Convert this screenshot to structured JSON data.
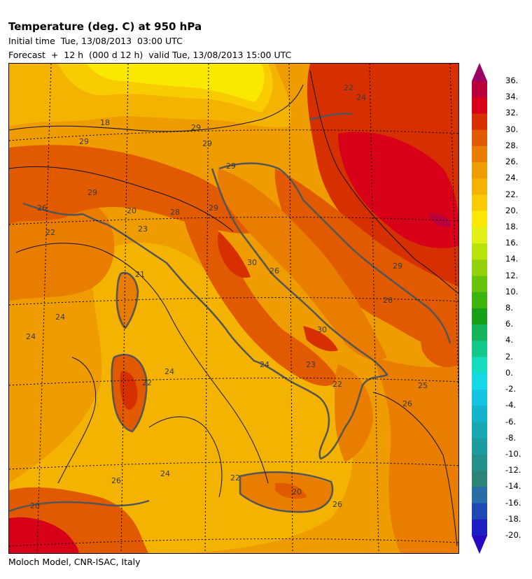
{
  "header": {
    "title": "Temperature (deg. C) at 950 hPa",
    "initial_time": "Initial time  Tue, 13/08/2013  03:00 UTC",
    "forecast": "Forecast  +  12 h  (000 d 12 h)  valid Tue, 13/08/2013 15:00 UTC"
  },
  "footer": {
    "credit": "Moloch Model, CNR-ISAC, Italy"
  },
  "colorbar": {
    "ticks": [
      "36.",
      "34.",
      "32.",
      "30.",
      "28.",
      "26.",
      "24.",
      "22.",
      "20.",
      "18.",
      "16.",
      "14.",
      "12.",
      "10.",
      "8.",
      "6.",
      "4.",
      "2.",
      "0.",
      "-2.",
      "-4.",
      "-6.",
      "-8.",
      "-10.",
      "-12.",
      "-14.",
      "-16.",
      "-18.",
      "-20."
    ],
    "colors": [
      "#9b0066",
      "#b9003c",
      "#d80018",
      "#d73000",
      "#e15a00",
      "#e87d00",
      "#ee9c00",
      "#f3b300",
      "#f8cc00",
      "#fae800",
      "#e2f01a",
      "#b8e20a",
      "#92d20a",
      "#6ac40a",
      "#3eb40e",
      "#16a01a",
      "#14b45a",
      "#14c88c",
      "#14dcc0",
      "#14d8e8",
      "#14c4e0",
      "#14b4cc",
      "#18a8b0",
      "#1c9ca0",
      "#24908c",
      "#2c8478",
      "#286ca8",
      "#2048b4",
      "#1c20c0",
      "#2808c0"
    ]
  },
  "map": {
    "contour_labels": [
      "22",
      "24",
      "29",
      "18",
      "29",
      "20",
      "28",
      "29",
      "26",
      "22",
      "23",
      "21",
      "24",
      "24",
      "30",
      "26",
      "30",
      "24",
      "22",
      "23",
      "24",
      "25",
      "26",
      "22",
      "26",
      "24",
      "22",
      "26",
      "20",
      "26",
      "29",
      "20",
      "29",
      "29",
      "29"
    ]
  }
}
